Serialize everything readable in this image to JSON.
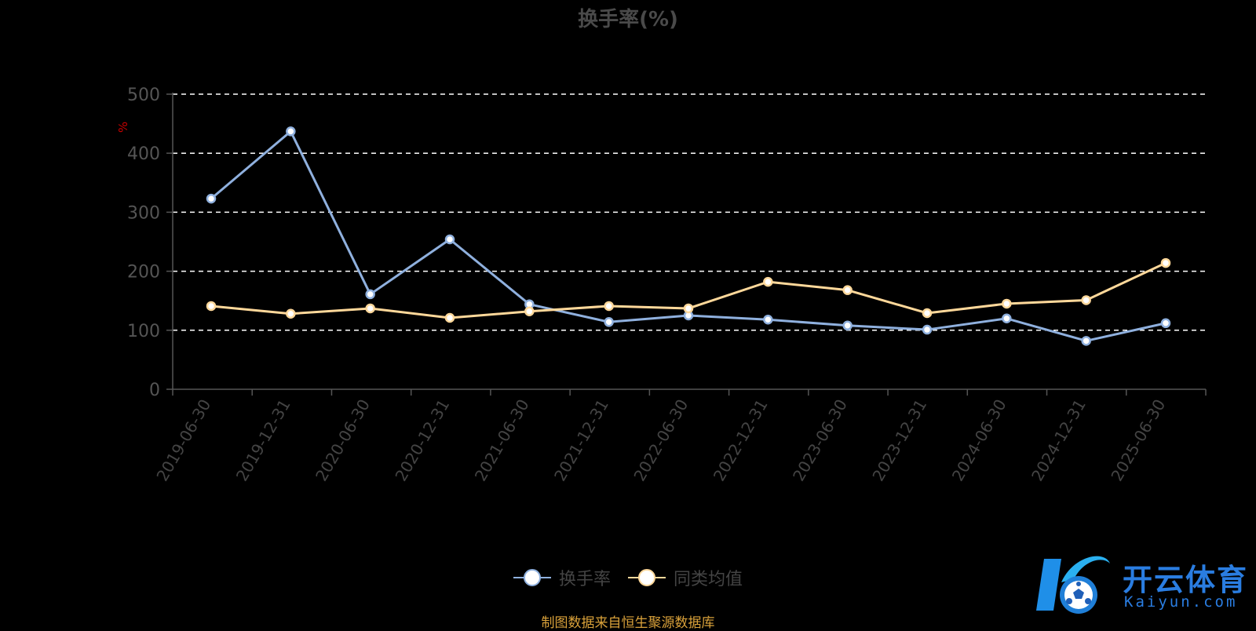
{
  "chart_data": {
    "type": "line",
    "title": "换手率(%)",
    "ylabel": "%",
    "xlabel": "",
    "ylim": [
      0,
      500
    ],
    "yticks": [
      0,
      100,
      200,
      300,
      400,
      500
    ],
    "grid": true,
    "legend_position": "bottom",
    "categories": [
      "2019-06-30",
      "2019-12-31",
      "2020-06-30",
      "2020-12-31",
      "2021-06-30",
      "2021-12-31",
      "2022-06-30",
      "2022-12-31",
      "2023-06-30",
      "2023-12-31",
      "2024-06-30",
      "2024-12-31",
      "2025-06-30"
    ],
    "series": [
      {
        "name": "换手率",
        "color": "#8fb0de",
        "values": [
          323,
          437,
          161,
          254,
          144,
          114,
          125,
          118,
          108,
          101,
          120,
          82,
          112
        ]
      },
      {
        "name": "同类均值",
        "color": "#ffd89a",
        "values": [
          141,
          128,
          137,
          121,
          132,
          141,
          137,
          182,
          168,
          129,
          145,
          151,
          214
        ]
      }
    ]
  },
  "footer": {
    "source": "制图数据来自恒生聚源数据库"
  },
  "watermark": {
    "brand": "开云体育",
    "domain": "Kaiyun.com",
    "icon": "soccer-ball-logo"
  },
  "colors": {
    "background": "#000000",
    "axis": "#555555",
    "grid": "#ffffff",
    "ylabel": "#cc0000"
  }
}
